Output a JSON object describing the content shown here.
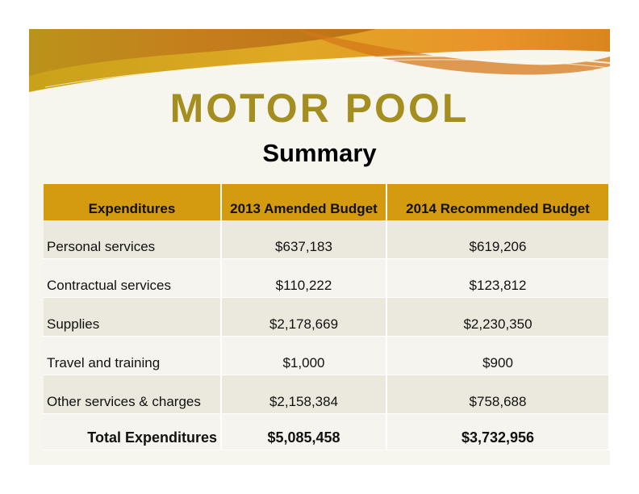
{
  "title": "MOTOR POOL",
  "subtitle": "Summary",
  "table": {
    "headers": [
      "Expenditures",
      "2013 Amended Budget",
      "2014 Recommended Budget"
    ],
    "rows": [
      {
        "label": "Personal services",
        "amended_2013": "$637,183",
        "recommended_2014": "$619,206"
      },
      {
        "label": "Contractual services",
        "amended_2013": "$110,222",
        "recommended_2014": "$123,812"
      },
      {
        "label": "Supplies",
        "amended_2013": "$2,178,669",
        "recommended_2014": "$2,230,350"
      },
      {
        "label": "Travel and training",
        "amended_2013": "$1,000",
        "recommended_2014": "$900"
      },
      {
        "label": "Other services & charges",
        "amended_2013": "$2,158,384",
        "recommended_2014": "$758,688"
      }
    ],
    "total": {
      "label": "Total Expenditures",
      "amended_2013": "$5,085,458",
      "recommended_2014": "$3,732,956"
    }
  },
  "colors": {
    "title": "#a48e20",
    "header_fill": "#d49b10",
    "row_band": "#ebe8de",
    "background": "#f6f6ef"
  }
}
